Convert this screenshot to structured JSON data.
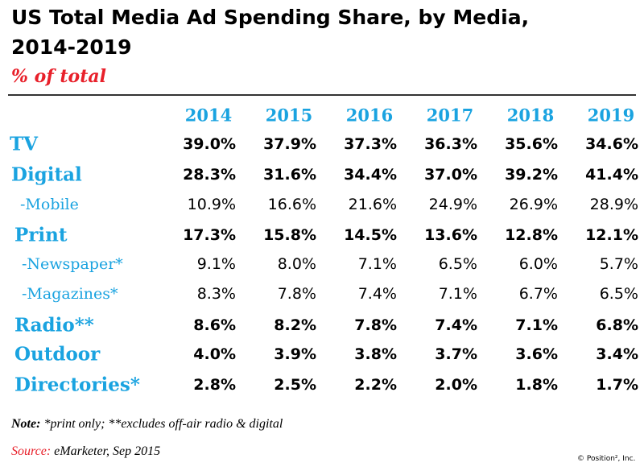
{
  "chart_data": {
    "type": "table",
    "title_line1": "US Total Media Ad Spending Share, by Media,",
    "title_line2": "2014-2019",
    "subtitle": "% of total",
    "columns": [
      "2014",
      "2015",
      "2016",
      "2017",
      "2018",
      "2019"
    ],
    "rows": [
      {
        "label": "TV",
        "level": "main",
        "values": [
          "39.0%",
          "37.9%",
          "37.3%",
          "36.3%",
          "35.6%",
          "34.6%"
        ]
      },
      {
        "label": "Digital",
        "level": "main",
        "values": [
          "28.3%",
          "31.6%",
          "34.4%",
          "37.0%",
          "39.2%",
          "41.4%"
        ]
      },
      {
        "label": "-Mobile",
        "level": "sub",
        "values": [
          "10.9%",
          "16.6%",
          "21.6%",
          "24.9%",
          "26.9%",
          "28.9%"
        ]
      },
      {
        "label": "Print",
        "level": "main",
        "values": [
          "17.3%",
          "15.8%",
          "14.5%",
          "13.6%",
          "12.8%",
          "12.1%"
        ]
      },
      {
        "label": "-Newspaper*",
        "level": "sub",
        "values": [
          "9.1%",
          "8.0%",
          "7.1%",
          "6.5%",
          "6.0%",
          "5.7%"
        ]
      },
      {
        "label": "-Magazines*",
        "level": "sub",
        "values": [
          "8.3%",
          "7.8%",
          "7.4%",
          "7.1%",
          "6.7%",
          "6.5%"
        ]
      },
      {
        "label": "Radio**",
        "level": "main",
        "values": [
          "8.6%",
          "8.2%",
          "7.8%",
          "7.4%",
          "7.1%",
          "6.8%"
        ]
      },
      {
        "label": "Outdoor",
        "level": "main",
        "values": [
          "4.0%",
          "3.9%",
          "3.8%",
          "3.7%",
          "3.6%",
          "3.4%"
        ]
      },
      {
        "label": "Directories*",
        "level": "main",
        "values": [
          "2.8%",
          "2.5%",
          "2.2%",
          "2.0%",
          "1.8%",
          "1.7%"
        ]
      }
    ]
  },
  "footer": {
    "note_label": "Note:",
    "note_text": " *print only; **excludes off-air radio & digital",
    "source_label": "Source:",
    "source_text": " eMarketer, Sep 2015",
    "copyright": "© Position², Inc."
  },
  "colors": {
    "accent": "#1aa3e0",
    "red": "#e8202a"
  }
}
